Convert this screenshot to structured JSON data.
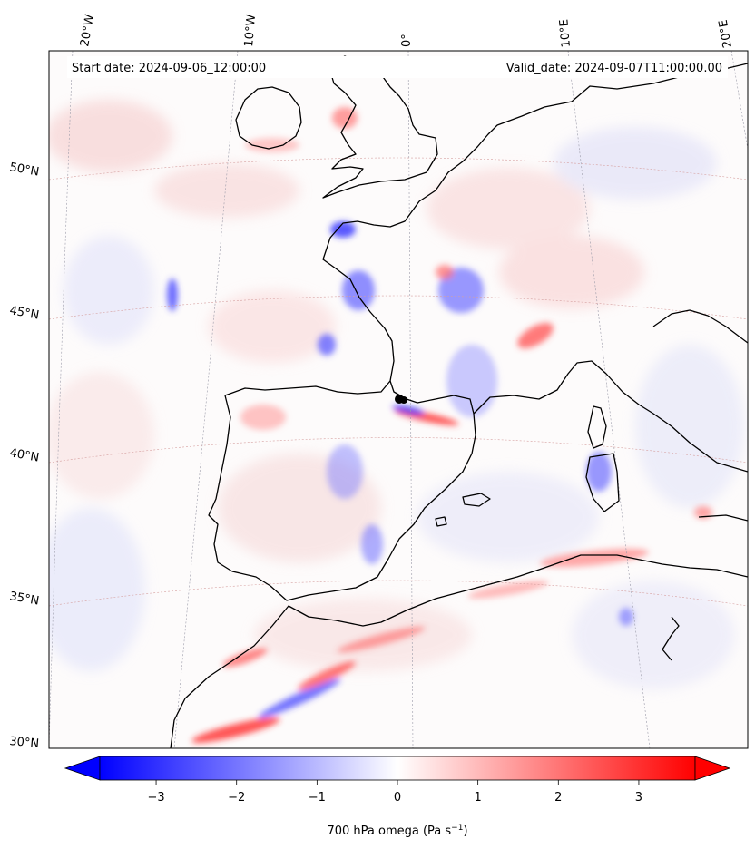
{
  "header": {
    "start_date": "Start date: 2024-09-06_12:00:00",
    "valid_date": "Valid_date: 2024-09-07T11:00:00.00"
  },
  "map": {
    "lon_labels": [
      "20°W",
      "10°W",
      "0°",
      "10°E",
      "20°E"
    ],
    "lat_labels": [
      "50°N",
      "45°N",
      "40°N",
      "35°N",
      "30°N"
    ],
    "marker_icon": "location-dot-icon"
  },
  "colorbar": {
    "ticks": [
      "−3",
      "−2",
      "−1",
      "0",
      "1",
      "2",
      "3"
    ],
    "label": "700 hPa omega (Pa s",
    "label_sup": "−1",
    "label_end": ")",
    "vmin": -3.7,
    "vmax": 3.7,
    "colors": {
      "min": "#0000ff",
      "mid": "#ffffff",
      "max": "#ff0000"
    }
  }
}
